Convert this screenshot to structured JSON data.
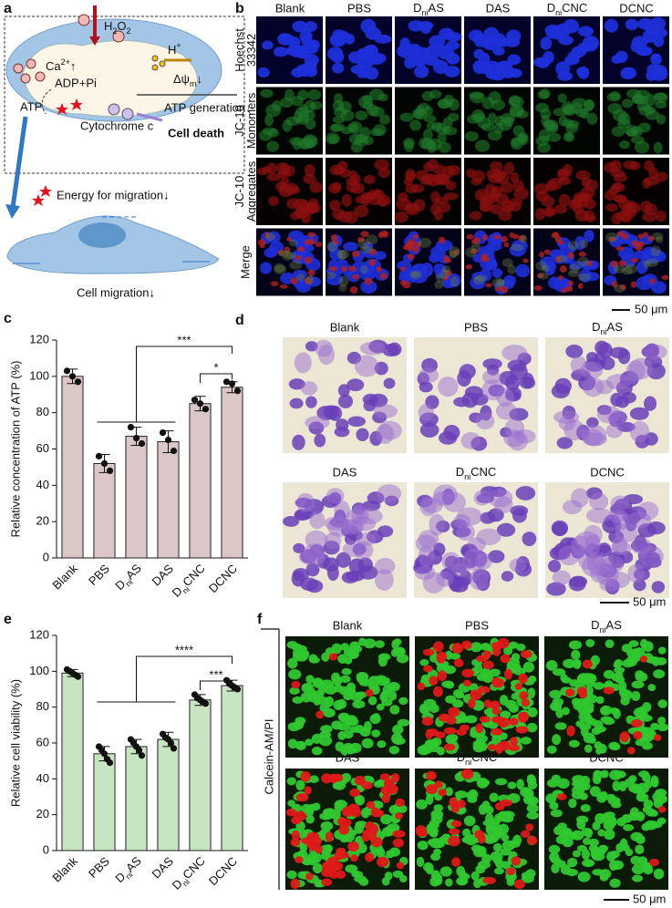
{
  "panels": {
    "a": {
      "label": "a",
      "h2o2": [
        "H",
        {
          "sub": "2"
        },
        "O",
        {
          "sub": "2"
        }
      ],
      "calcium": [
        "Ca",
        {
          "sup": "2+"
        },
        "↑"
      ],
      "proton": [
        "H",
        {
          "sup": "+"
        }
      ],
      "potential": [
        "Δψ",
        {
          "sub": "m"
        },
        "↓"
      ],
      "adp": "ADP+Pi",
      "atp": "ATP",
      "atp_generation": "ATP generation↓",
      "cytochrome": "Cytochrome c",
      "cell_death": "Cell death",
      "energy": "Energy for migration↓",
      "migration": "Cell migration↓"
    },
    "b": {
      "label": "b",
      "columns": [
        "Blank",
        "PBS",
        [
          "D",
          {
            "sub": "ni"
          },
          "AS"
        ],
        "DAS",
        [
          "D",
          {
            "sub": "ni"
          },
          "CNC"
        ],
        "DCNC"
      ],
      "rows": [
        [
          "Hoechst",
          "33342"
        ],
        [
          "JC-10",
          "Monomers"
        ],
        [
          "JC-10",
          "Aggregates"
        ],
        [
          "Merge"
        ]
      ],
      "scale_bar": "50 μm"
    },
    "d": {
      "label": "d",
      "titles": [
        "Blank",
        "PBS",
        [
          "D",
          {
            "sub": "ni"
          },
          "AS"
        ],
        "DAS",
        [
          "D",
          {
            "sub": "ni"
          },
          "CNC"
        ],
        "DCNC"
      ],
      "scale_bar": "50 μm"
    },
    "f": {
      "label": "f",
      "titles": [
        "Blank",
        "PBS",
        [
          "D",
          {
            "sub": "ni"
          },
          "AS"
        ],
        "DAS",
        [
          "D",
          {
            "sub": "ni"
          },
          "CNC"
        ],
        "DCNC"
      ],
      "side_label": "Calcein-AM/PI",
      "scale_bar": "50 μm"
    }
  },
  "chart_data": [
    {
      "type": "bar",
      "panel": "c",
      "y_label": "Relative concentration of ATP (%)",
      "categories": [
        "Blank",
        "PBS",
        [
          "D",
          {
            "sub": "ni"
          },
          "AS"
        ],
        "DAS",
        [
          "D",
          {
            "sub": "ni"
          },
          "CNC"
        ],
        "DCNC"
      ],
      "values": [
        100,
        52,
        67,
        64,
        85,
        94
      ],
      "errors": [
        4,
        5,
        5,
        6,
        4,
        3
      ],
      "points": [
        [
          103,
          100,
          97
        ],
        [
          56,
          52,
          48
        ],
        [
          72,
          66,
          63
        ],
        [
          69,
          65,
          59
        ],
        [
          87,
          85,
          82
        ],
        [
          97,
          96,
          92
        ]
      ],
      "color": "#dcc7c8",
      "ylim": [
        0,
        120
      ],
      "yticks": [
        0,
        20,
        40,
        60,
        80,
        100,
        120
      ],
      "annotations": [
        "***",
        "*"
      ]
    },
    {
      "type": "bar",
      "panel": "e",
      "y_label": "Relative cell viability (%)",
      "categories": [
        "Blank",
        "PBS",
        [
          "D",
          {
            "sub": "ni"
          },
          "AS"
        ],
        "DAS",
        [
          "D",
          {
            "sub": "ni"
          },
          "CNC"
        ],
        "DCNC"
      ],
      "values": [
        99,
        54,
        58,
        62,
        84,
        92
      ],
      "errors": [
        2,
        4,
        4,
        4,
        3,
        3
      ],
      "points": [
        [
          101,
          100,
          99,
          98,
          97
        ],
        [
          58,
          56,
          54,
          51,
          49
        ],
        [
          62,
          60,
          58,
          56,
          53
        ],
        [
          65,
          63,
          62,
          60,
          57
        ],
        [
          87,
          85,
          84,
          83,
          82
        ],
        [
          95,
          93,
          92,
          91,
          90
        ]
      ],
      "color": "#c8e5c2",
      "ylim": [
        0,
        120
      ],
      "yticks": [
        0,
        20,
        40,
        60,
        80,
        100,
        120
      ],
      "annotations": [
        "****",
        "***"
      ]
    }
  ]
}
